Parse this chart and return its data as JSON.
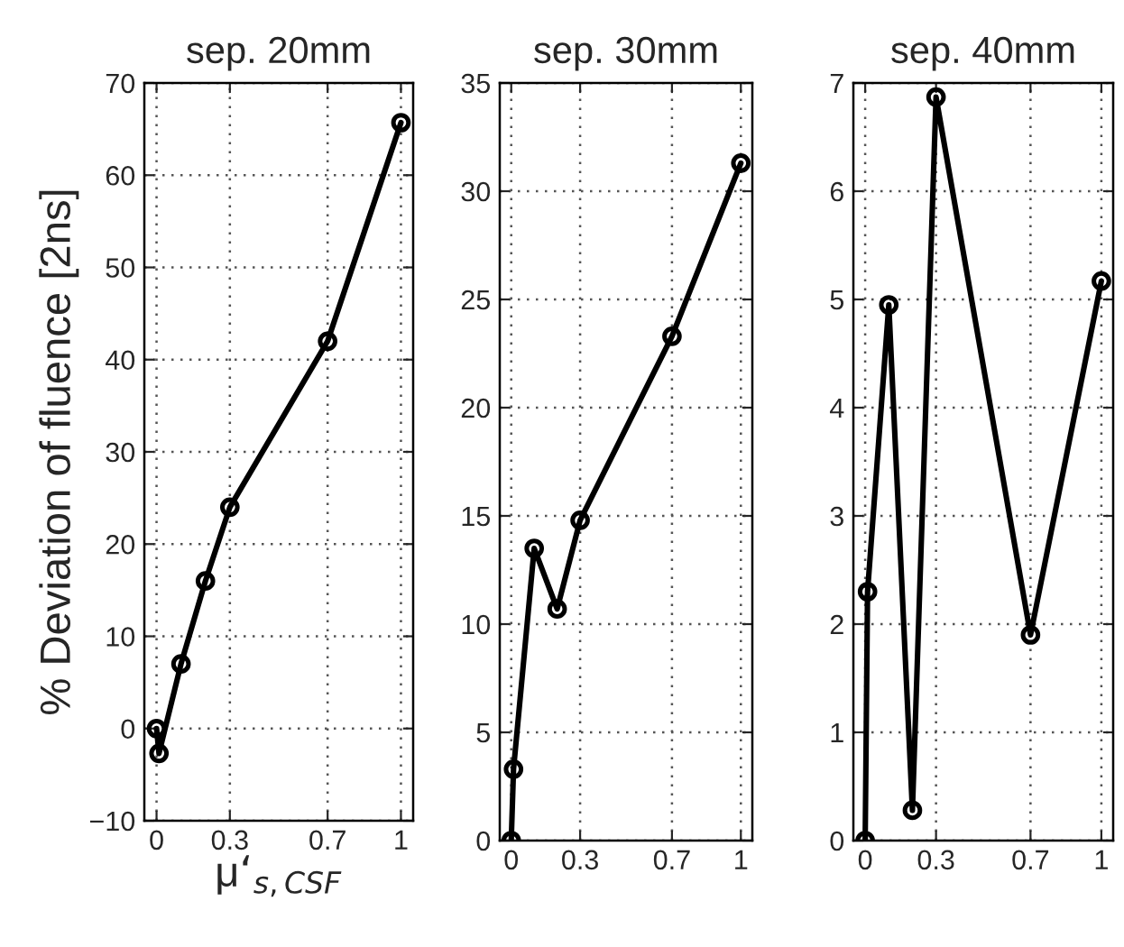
{
  "chart_data": [
    {
      "type": "line",
      "title": "sep. 20mm",
      "xlabel": "μ‘$_{s,CSF}$",
      "ylabel": "% Deviation of fluence [2ns]",
      "marker": "circle",
      "line_style": "solid",
      "grid": true,
      "x": [
        0,
        0.01,
        0.1,
        0.2,
        0.3,
        0.7,
        1
      ],
      "series": [
        {
          "color": "#000000",
          "values": [
            0,
            -2.7,
            7,
            16,
            24,
            42,
            65.7
          ]
        }
      ],
      "xlim": [
        -0.05,
        1.05
      ],
      "xticks": [
        0,
        0.3,
        0.7,
        1
      ],
      "ylim": [
        -10,
        70
      ],
      "yticks": [
        -10,
        0,
        10,
        20,
        30,
        40,
        50,
        60,
        70
      ]
    },
    {
      "type": "line",
      "title": "sep. 30mm",
      "marker": "circle",
      "line_style": "solid",
      "grid": true,
      "x": [
        0,
        0.01,
        0.1,
        0.2,
        0.3,
        0.7,
        1
      ],
      "series": [
        {
          "color": "#000000",
          "values": [
            0,
            3.3,
            13.5,
            10.7,
            14.8,
            23.3,
            31.3
          ]
        }
      ],
      "xlim": [
        -0.05,
        1.05
      ],
      "xticks": [
        0,
        0.3,
        0.7,
        1
      ],
      "ylim": [
        0,
        35
      ],
      "yticks": [
        0,
        5,
        10,
        15,
        20,
        25,
        30,
        35
      ]
    },
    {
      "type": "line",
      "title": "sep. 40mm",
      "marker": "circle",
      "line_style": "solid",
      "grid": true,
      "x": [
        0,
        0.01,
        0.1,
        0.2,
        0.3,
        0.7,
        1
      ],
      "series": [
        {
          "color": "#000000",
          "values": [
            0,
            2.3,
            4.95,
            0.28,
            6.87,
            1.9,
            5.17
          ]
        }
      ],
      "xlim": [
        -0.05,
        1.05
      ],
      "xticks": [
        0,
        0.3,
        0.7,
        1
      ],
      "ylim": [
        0,
        7
      ],
      "yticks": [
        0,
        1,
        2,
        3,
        4,
        5,
        6,
        7
      ]
    }
  ]
}
